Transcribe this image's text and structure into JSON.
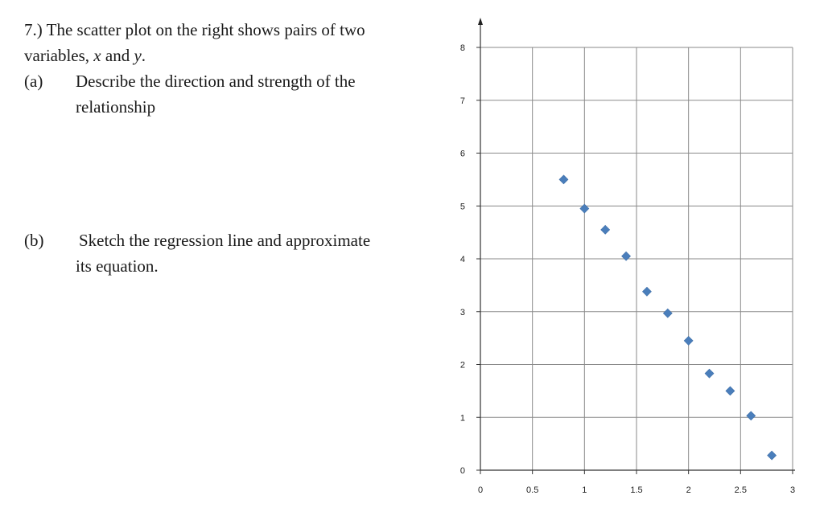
{
  "question": {
    "number": "7.)",
    "intro_part1": "The scatter plot on the right shows pairs of two",
    "intro_part2": "variables,",
    "var_x": "x",
    "and_word": "and",
    "var_y": "y",
    "period": ".",
    "part_a_label": "(a)",
    "part_a_line1": "Describe the direction and strength of the",
    "part_a_line2": "relationship",
    "part_b_label": "(b)",
    "part_b_line1": "Sketch the regression line and approximate",
    "part_b_line2": "its equation."
  },
  "chart_data": {
    "type": "scatter",
    "title": "",
    "xlabel": "",
    "ylabel": "",
    "xlim": [
      0,
      3
    ],
    "ylim": [
      0,
      8
    ],
    "xticks": [
      0,
      0.5,
      1,
      1.5,
      2,
      2.5,
      3
    ],
    "yticks": [
      0,
      1,
      2,
      3,
      4,
      5,
      6,
      7,
      8
    ],
    "x_tick_labels": [
      "0",
      "0.5",
      "1",
      "1.5",
      "2",
      "2.5",
      "3"
    ],
    "y_tick_labels": [
      "0",
      "1",
      "2",
      "3",
      "4",
      "5",
      "6",
      "7",
      "8"
    ],
    "grid": true,
    "marker": "diamond",
    "marker_color": "#4a7ebb",
    "series": [
      {
        "x": [
          0.8,
          1.0,
          1.2,
          1.4,
          1.6,
          1.8,
          2.0,
          2.2,
          2.4,
          2.6,
          2.8
        ],
        "y": [
          5.5,
          4.95,
          4.55,
          4.05,
          3.38,
          2.97,
          2.45,
          1.83,
          1.5,
          1.03,
          0.28
        ]
      }
    ]
  }
}
